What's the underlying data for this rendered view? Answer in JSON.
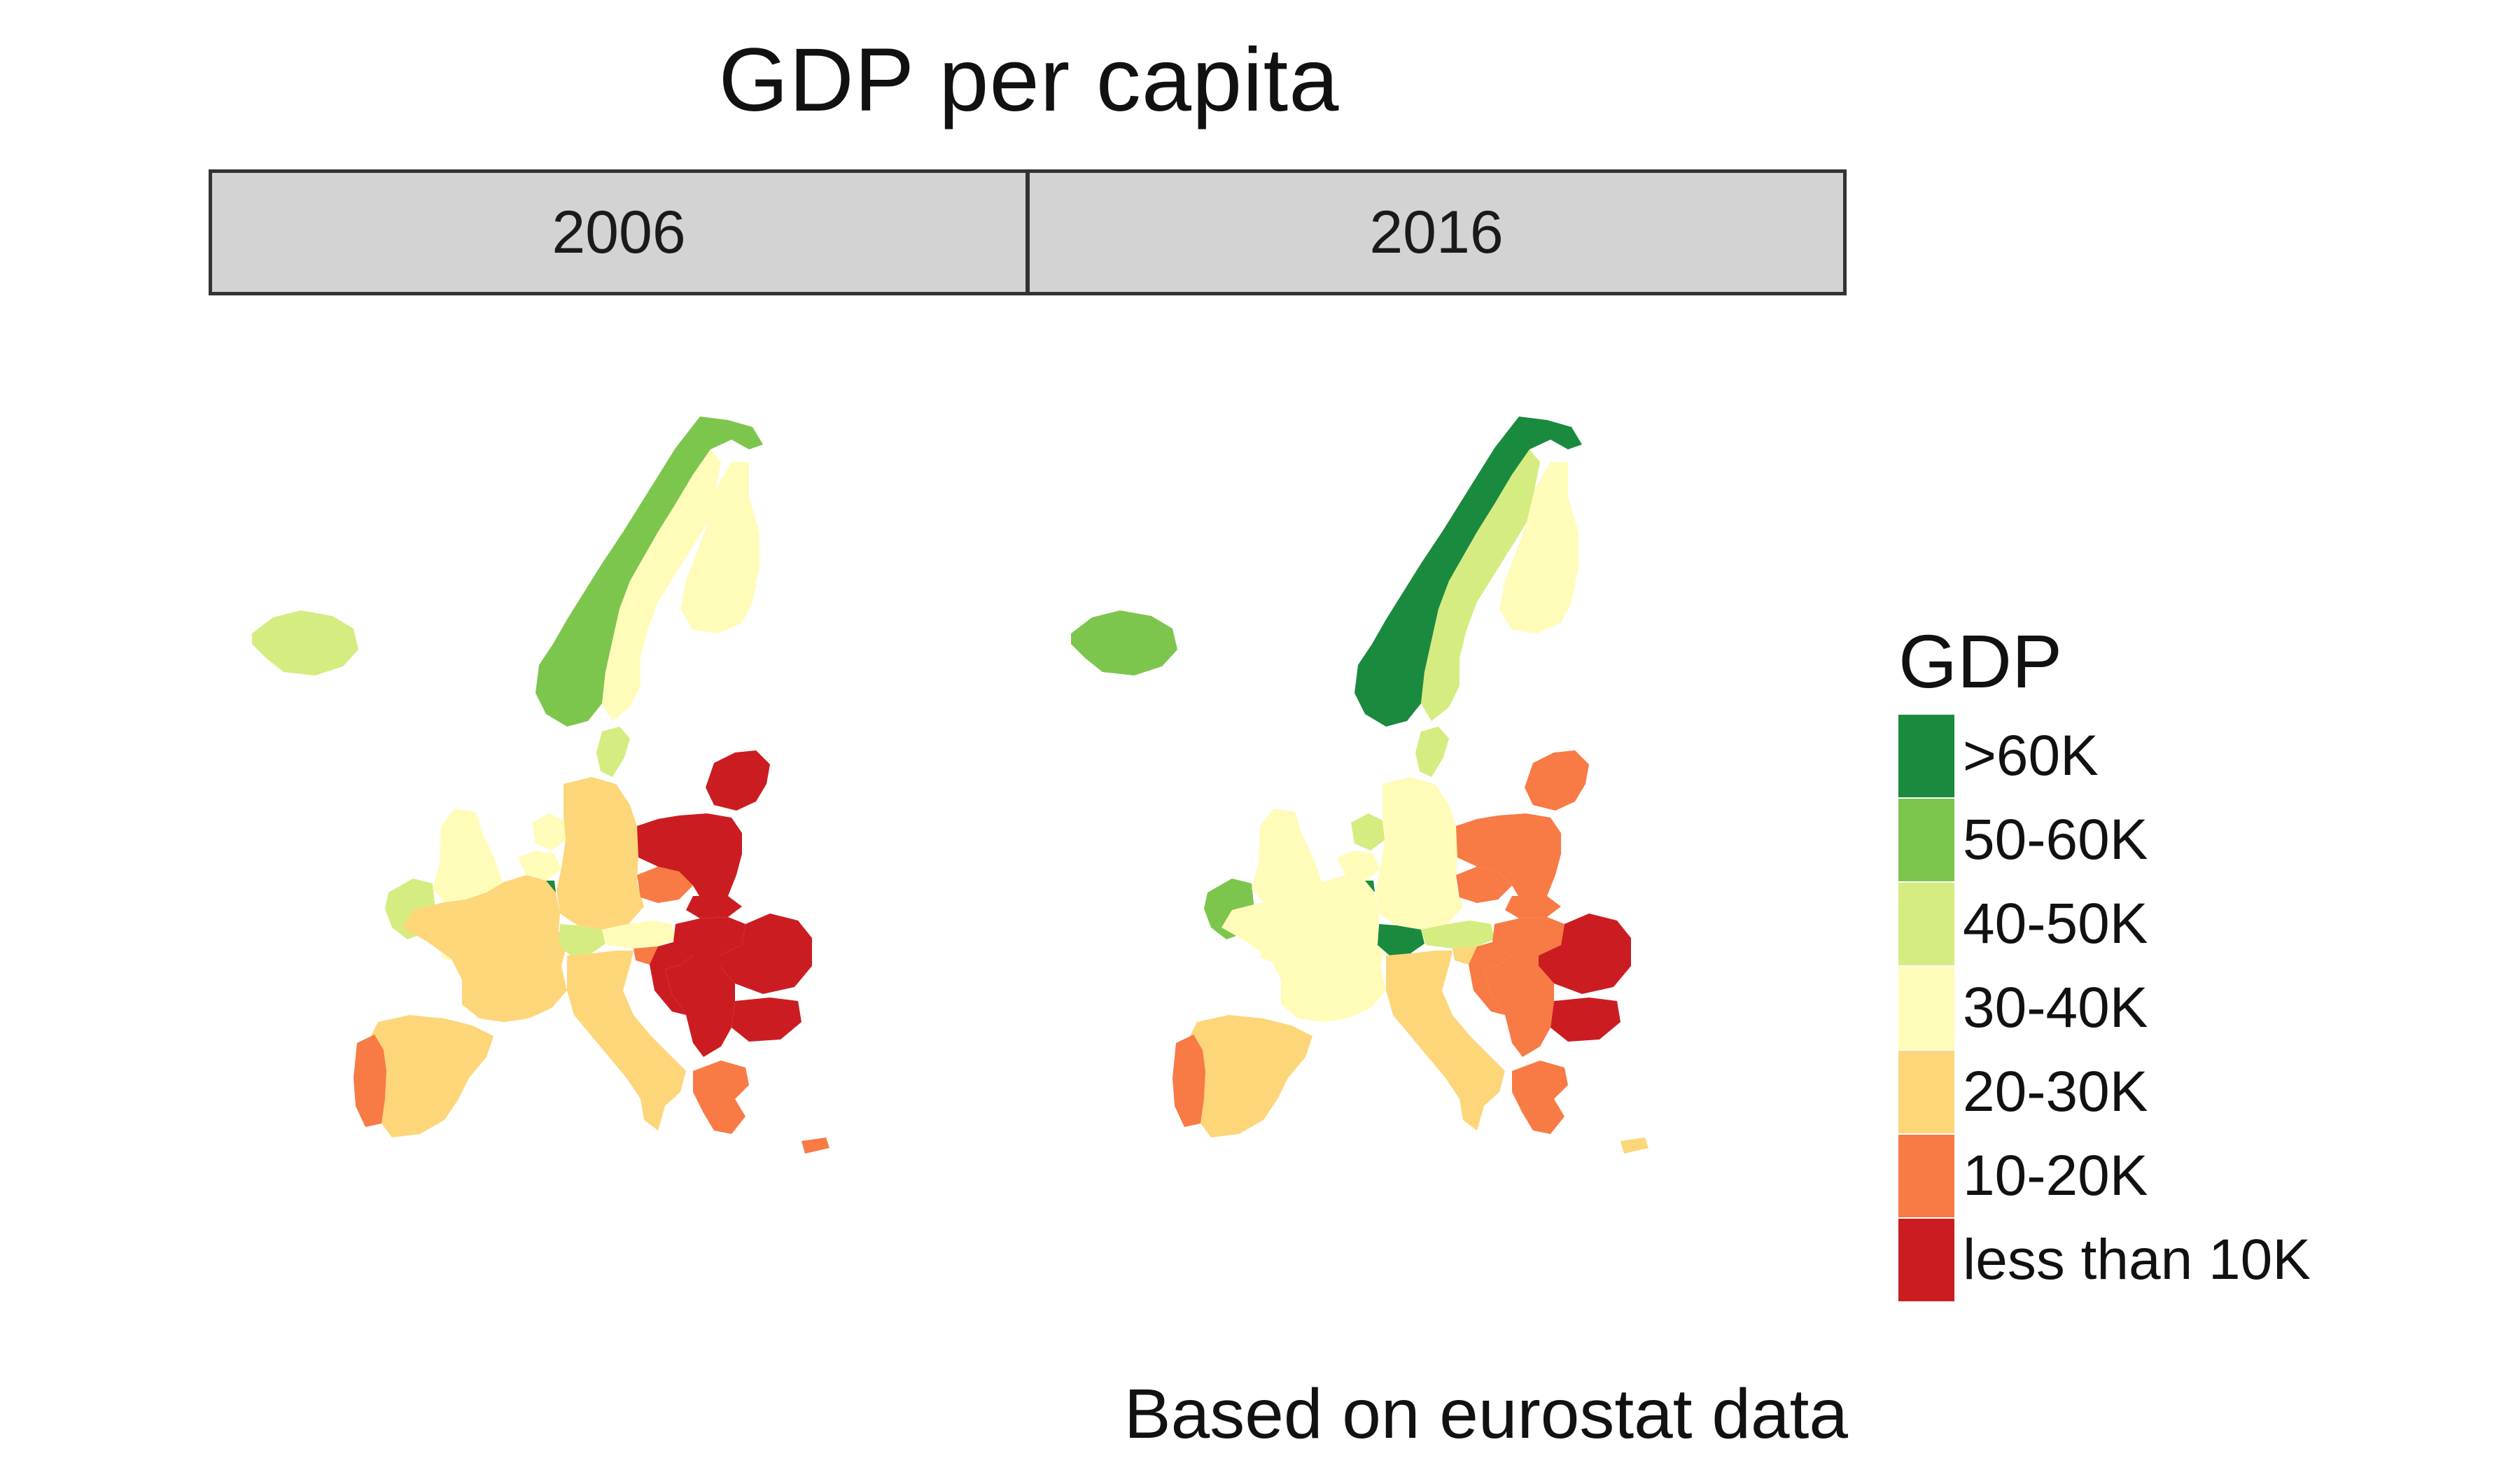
{
  "title": "GDP per capita",
  "panels": [
    {
      "year": "2006"
    },
    {
      "year": "2016"
    }
  ],
  "legend": {
    "title": "GDP",
    "items": [
      {
        "label": ">60K",
        "color": "#1a8a3f"
      },
      {
        "label": "50-60K",
        "color": "#7dc64e"
      },
      {
        "label": "40-50K",
        "color": "#d5ec80"
      },
      {
        "label": "30-40K",
        "color": "#fffcb9"
      },
      {
        "label": "20-30K",
        "color": "#fdd67a"
      },
      {
        "label": "10-20K",
        "color": "#f87a45"
      },
      {
        "label": "less than 10K",
        "color": "#cb1d21"
      }
    ]
  },
  "caption": "Based on eurostat data",
  "map_data": {
    "2006": {
      "Iceland": "40-50K",
      "Ireland": "40-50K",
      "United Kingdom": "30-40K",
      "Norway": "50-60K",
      "Sweden": "30-40K",
      "Finland": "30-40K",
      "Denmark": "40-50K",
      "Netherlands": "30-40K",
      "Belgium": "30-40K",
      "Luxembourg": ">60K",
      "Germany": "20-30K",
      "France": "20-30K",
      "Switzerland": "40-50K",
      "Austria": "30-40K",
      "Italy": "20-30K",
      "Spain": "20-30K",
      "Portugal": "10-20K",
      "Greece": "10-20K",
      "Czechia": "10-20K",
      "Slovenia": "10-20K",
      "Cyprus": "10-20K",
      "Poland": "less than 10K",
      "Baltics": "less than 10K",
      "Slovakia": "less than 10K",
      "Hungary": "less than 10K",
      "Romania": "less than 10K",
      "Bulgaria": "less than 10K",
      "Croatia": "less than 10K",
      "Western Balkans": "less than 10K"
    },
    "2016": {
      "Iceland": "50-60K",
      "Ireland": "50-60K",
      "United Kingdom": "30-40K",
      "Norway": ">60K",
      "Sweden": "40-50K",
      "Finland": "30-40K",
      "Denmark": "40-50K",
      "Netherlands": "40-50K",
      "Belgium": "30-40K",
      "Luxembourg": ">60K",
      "Germany": "30-40K",
      "France": "30-40K",
      "Switzerland": ">60K",
      "Austria": "40-50K",
      "Italy": "20-30K",
      "Spain": "20-30K",
      "Portugal": "10-20K",
      "Greece": "10-20K",
      "Czechia": "10-20K",
      "Slovenia": "20-30K",
      "Cyprus": "20-30K",
      "Poland": "10-20K",
      "Baltics": "10-20K",
      "Slovakia": "10-20K",
      "Hungary": "10-20K",
      "Croatia": "10-20K",
      "Western Balkans": "10-20K",
      "Romania": "less than 10K",
      "Bulgaria": "less than 10K"
    }
  }
}
